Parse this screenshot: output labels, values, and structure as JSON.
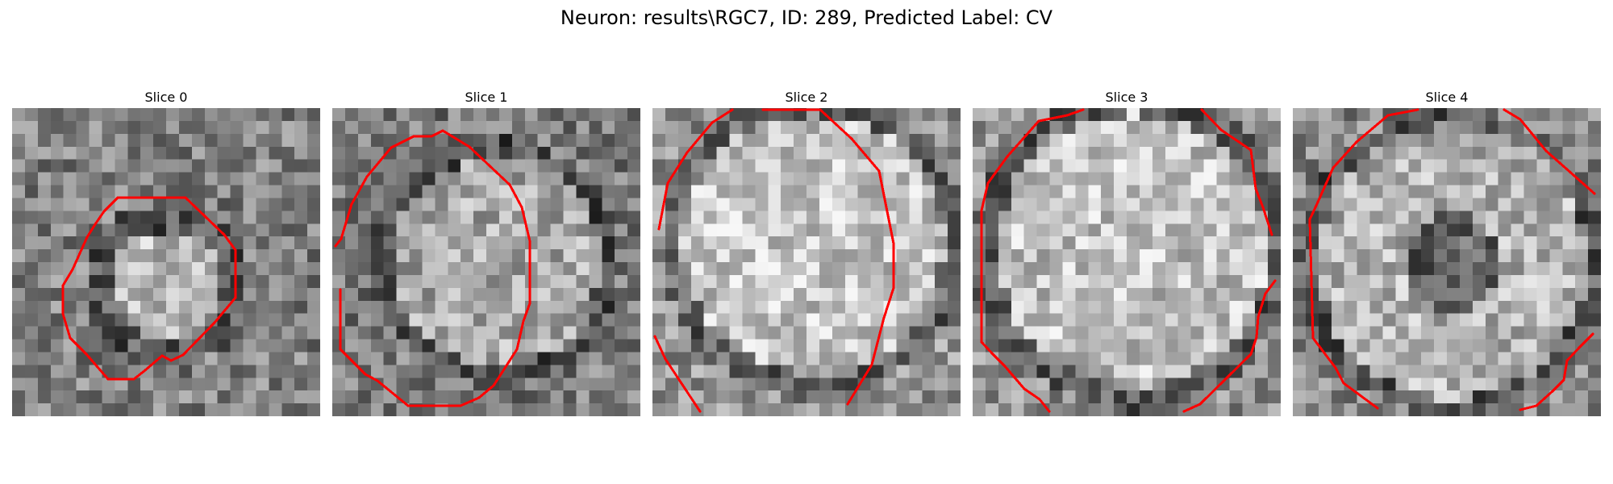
{
  "figure": {
    "title": "Neuron: results\\RGC7, ID: 289, Predicted Label: CV"
  },
  "slices": [
    {
      "title": "Slice 0"
    },
    {
      "title": "Slice 1"
    },
    {
      "title": "Slice 2"
    },
    {
      "title": "Slice 3"
    },
    {
      "title": "Slice 4"
    }
  ],
  "colors": {
    "contour": "#ff0000",
    "background": "#ffffff"
  }
}
